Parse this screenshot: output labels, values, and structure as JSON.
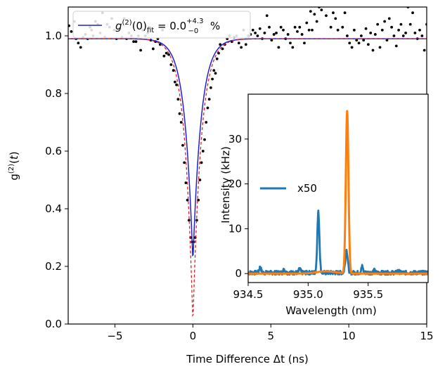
{
  "chart_data": [
    {
      "type": "scatter",
      "panel": "main",
      "xlabel": "Time Difference Δt (ns)",
      "ylabel": "g(2)(t)",
      "xlim": [
        -8,
        15
      ],
      "ylim": [
        0,
        1.1
      ],
      "xticks": [
        -5,
        0,
        5,
        10,
        15
      ],
      "xtick_labels": [
        "−5",
        "0",
        "5",
        "10",
        "15"
      ],
      "yticks": [
        0.0,
        0.2,
        0.4,
        0.6,
        0.8,
        1.0
      ],
      "ytick_labels": [
        "0.0",
        "0.2",
        "0.4",
        "0.6",
        "0.8",
        "1.0"
      ],
      "grid": false,
      "legend_position": "top-left",
      "legend": {
        "label": "g(2)(0)fit = 0.0+4.3−0 %",
        "label_main": "g",
        "label_sup": "(2)",
        "label_arg": "(0)",
        "label_sub": "fit",
        "label_eq": " = 0.0",
        "label_upper": "+4.3",
        "label_lower": "−0",
        "label_unit": " %"
      },
      "fit_model": {
        "baseline": 0.99,
        "min_solid": 0.215,
        "min_dashed": 0.0,
        "width_ns": 0.52
      },
      "series": [
        {
          "kind": "points",
          "color": "#000000",
          "points": [
            [
              -7.95,
              1.035
            ],
            [
              -7.8,
              1.015
            ],
            [
              -7.6,
              1.05
            ],
            [
              -7.5,
              0.99
            ],
            [
              -7.35,
              0.975
            ],
            [
              -7.2,
              0.96
            ],
            [
              -7.05,
              0.995
            ],
            [
              -6.9,
              1.005
            ],
            [
              -6.75,
              0.99
            ],
            [
              -6.6,
              1.03
            ],
            [
              -6.5,
              1.02
            ],
            [
              -6.4,
              1.0
            ],
            [
              -6.25,
              1.05
            ],
            [
              -6.1,
              1.04
            ],
            [
              -5.95,
              1.01
            ],
            [
              -5.8,
              1.08
            ],
            [
              -5.65,
              0.995
            ],
            [
              -5.5,
              1.04
            ],
            [
              -5.35,
              1.03
            ],
            [
              -5.2,
              1.06
            ],
            [
              -5.05,
              1.02
            ],
            [
              -4.9,
              0.99
            ],
            [
              -4.75,
              1.025
            ],
            [
              -4.55,
              0.995
            ],
            [
              -4.4,
              1.06
            ],
            [
              -4.25,
              0.99
            ],
            [
              -4.1,
              1.01
            ],
            [
              -3.95,
              1.0
            ],
            [
              -3.8,
              0.98
            ],
            [
              -3.65,
              0.98
            ],
            [
              -3.5,
              1.0
            ],
            [
              -3.35,
              0.95
            ],
            [
              -3.2,
              1.02
            ],
            [
              -3.05,
              1.0
            ],
            [
              -2.9,
              1.01
            ],
            [
              -2.7,
              0.985
            ],
            [
              -2.55,
              0.955
            ],
            [
              -2.4,
              0.98
            ],
            [
              -2.25,
              0.99
            ],
            [
              -2.1,
              0.97
            ],
            [
              -1.95,
              1.02
            ],
            [
              -1.85,
              0.93
            ],
            [
              -1.7,
              0.94
            ],
            [
              -1.55,
              0.935
            ],
            [
              -1.4,
              0.9
            ],
            [
              -1.25,
              0.88
            ],
            [
              -1.15,
              0.84
            ],
            [
              -1.05,
              0.83
            ],
            [
              -0.95,
              0.78
            ],
            [
              -0.85,
              0.73
            ],
            [
              -0.75,
              0.7
            ],
            [
              -0.65,
              0.62
            ],
            [
              -0.55,
              0.56
            ],
            [
              -0.45,
              0.49
            ],
            [
              -0.35,
              0.43
            ],
            [
              -0.25,
              0.36
            ],
            [
              -0.15,
              0.3
            ],
            [
              -0.05,
              0.285
            ],
            [
              0.05,
              0.285
            ],
            [
              0.15,
              0.3
            ],
            [
              0.25,
              0.36
            ],
            [
              0.35,
              0.43
            ],
            [
              0.45,
              0.5
            ],
            [
              0.55,
              0.56
            ],
            [
              0.65,
              0.6
            ],
            [
              0.75,
              0.64
            ],
            [
              0.85,
              0.7
            ],
            [
              0.95,
              0.75
            ],
            [
              1.05,
              0.78
            ],
            [
              1.15,
              0.82
            ],
            [
              1.25,
              0.85
            ],
            [
              1.35,
              0.88
            ],
            [
              1.45,
              0.87
            ],
            [
              1.55,
              0.92
            ],
            [
              1.65,
              0.94
            ],
            [
              1.75,
              0.97
            ],
            [
              1.9,
              0.955
            ],
            [
              2.05,
              0.97
            ],
            [
              2.2,
              0.99
            ],
            [
              2.35,
              1.0
            ],
            [
              2.5,
              0.98
            ],
            [
              2.65,
              0.995
            ],
            [
              2.8,
              1.0
            ],
            [
              2.95,
              0.975
            ],
            [
              3.1,
              0.96
            ],
            [
              3.25,
              1.02
            ],
            [
              3.4,
              0.97
            ],
            [
              3.55,
              1.0
            ],
            [
              3.7,
              1.005
            ],
            [
              3.85,
              1.02
            ],
            [
              4.0,
              1.01
            ],
            [
              4.15,
              1.0
            ],
            [
              4.3,
              1.025
            ],
            [
              4.45,
              0.99
            ],
            [
              4.6,
              1.01
            ],
            [
              4.75,
              1.07
            ],
            [
              4.9,
              1.03
            ],
            [
              5.05,
              0.985
            ],
            [
              5.2,
              1.005
            ],
            [
              5.35,
              1.01
            ],
            [
              5.5,
              0.96
            ],
            [
              5.65,
              1.03
            ],
            [
              5.8,
              1.02
            ],
            [
              5.95,
              0.99
            ],
            [
              6.1,
              1.005
            ],
            [
              6.25,
              0.975
            ],
            [
              6.4,
              0.96
            ],
            [
              6.55,
              1.03
            ],
            [
              6.7,
              1.015
            ],
            [
              6.85,
              1.03
            ],
            [
              7.0,
              1.005
            ],
            [
              7.15,
              0.975
            ],
            [
              7.3,
              1.045
            ],
            [
              7.45,
              1.02
            ],
            [
              7.55,
              1.085
            ],
            [
              7.65,
              1.02
            ],
            [
              7.8,
              1.075
            ],
            [
              7.95,
              1.05
            ],
            [
              8.1,
              1.1
            ],
            [
              8.25,
              1.09
            ],
            [
              8.4,
              1.13
            ],
            [
              8.55,
              1.07
            ],
            [
              8.7,
              1.12
            ],
            [
              8.85,
              1.03
            ],
            [
              9.0,
              1.08
            ],
            [
              9.15,
              1.06
            ],
            [
              9.3,
              1.02
            ],
            [
              9.45,
              1.12
            ],
            [
              9.6,
              1.03
            ],
            [
              9.75,
              1.08
            ],
            [
              9.9,
              1.0
            ],
            [
              10.05,
              0.975
            ],
            [
              10.2,
              0.96
            ],
            [
              10.35,
              1.02
            ],
            [
              10.5,
              0.985
            ],
            [
              10.65,
              0.975
            ],
            [
              10.8,
              1.0
            ],
            [
              10.95,
              0.985
            ],
            [
              11.1,
              1.025
            ],
            [
              11.25,
              0.97
            ],
            [
              11.4,
              1.01
            ],
            [
              11.55,
              0.95
            ],
            [
              11.7,
              1.005
            ],
            [
              11.85,
              1.04
            ],
            [
              12.0,
              0.96
            ],
            [
              12.15,
              1.02
            ],
            [
              12.3,
              1.05
            ],
            [
              12.45,
              0.985
            ],
            [
              12.6,
              1.06
            ],
            [
              12.75,
              1.03
            ],
            [
              12.9,
              1.0
            ],
            [
              13.05,
              0.965
            ],
            [
              13.2,
              1.02
            ],
            [
              13.35,
              1.04
            ],
            [
              13.5,
              1.0
            ],
            [
              13.65,
              1.01
            ],
            [
              13.8,
              1.1
            ],
            [
              13.95,
              1.04
            ],
            [
              14.1,
              1.08
            ],
            [
              14.25,
              1.01
            ],
            [
              14.4,
              0.99
            ],
            [
              14.55,
              1.02
            ],
            [
              14.7,
              1.0
            ],
            [
              14.85,
              0.95
            ],
            [
              15.0,
              1.04
            ]
          ]
        },
        {
          "kind": "fit",
          "style": "solid",
          "color": "#2020d0"
        },
        {
          "kind": "fit",
          "style": "dashed",
          "color": "#e02020"
        }
      ]
    },
    {
      "type": "line",
      "panel": "inset",
      "xlabel": "Wavelength (nm)",
      "ylabel": "Intensity (kHz)",
      "xlim": [
        934.5,
        936.0
      ],
      "ylim": [
        -2,
        40
      ],
      "xticks": [
        934.5,
        935.0,
        935.5
      ],
      "xtick_labels": [
        "934.5",
        "935.0",
        "935.5"
      ],
      "yticks": [
        0,
        10,
        20,
        30
      ],
      "ytick_labels": [
        "0",
        "10",
        "20",
        "30"
      ],
      "legend_position": "left",
      "series": [
        {
          "name": "x50",
          "color": "#1f77b4",
          "baseline": 0.2,
          "peaks": [
            [
              935.085,
              13.5,
              0.009
            ],
            [
              935.32,
              5.0,
              0.01
            ],
            [
              935.45,
              1.4,
              0.007
            ],
            [
              934.6,
              1.2,
              0.008
            ],
            [
              934.8,
              0.8,
              0.006
            ],
            [
              934.93,
              0.9,
              0.007
            ],
            [
              935.55,
              0.5,
              0.007
            ],
            [
              935.75,
              0.4,
              0.008
            ]
          ]
        },
        {
          "name": "",
          "color": "#ff7f0e",
          "baseline": 0.0,
          "peaks": [
            [
              935.325,
              36.2,
              0.011
            ],
            [
              935.15,
              0.5,
              0.08
            ]
          ]
        }
      ]
    }
  ]
}
